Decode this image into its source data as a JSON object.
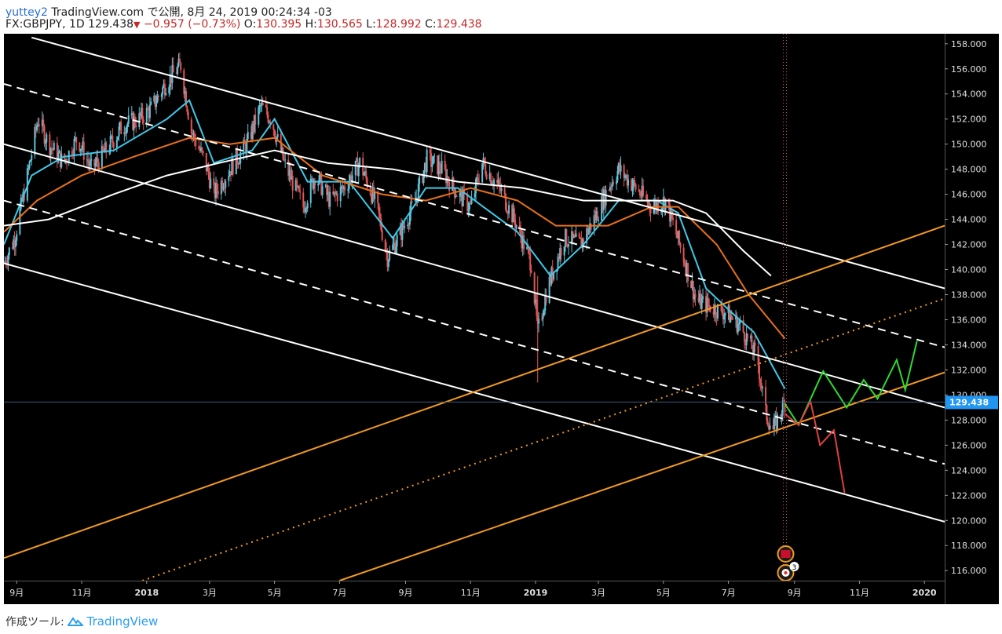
{
  "header": {
    "user": "yuttey2",
    "published": "TradingView.com で公開, 8月 24, 2019 00:24:34 -03",
    "symbol": "FX:GBPJPY, 1D",
    "price": "129.438",
    "change": "−0.957 (−0.73%)",
    "o_label": "O:",
    "o_value": "130.395",
    "h_label": "H:",
    "h_value": "130.565",
    "l_label": "L:",
    "l_value": "128.992",
    "c_label": "C:",
    "c_value": "129.438"
  },
  "footer": {
    "made_with": "作成ツール:",
    "brand": "TradingView"
  },
  "colors": {
    "background": "#000000",
    "candle_up": "#5fc3d9",
    "candle_down": "#e05555",
    "ma_fast": "#3ec9e8",
    "ma_mid": "#e8701a",
    "ma_slow": "#ffffff",
    "channel_white": "#ffffff",
    "channel_orange": "#f29a1e",
    "scenario_up": "#2ddc2d",
    "scenario_down": "#e04040",
    "price_tag": "#2196f3"
  },
  "chart_data": {
    "type": "line",
    "symbol": "FX:GBPJPY",
    "timeframe": "1D",
    "x_range": [
      "2017-08-20",
      "2020-01-20"
    ],
    "ylim": [
      115.2,
      158.8
    ],
    "y_ticks": [
      "158.000",
      "156.000",
      "154.000",
      "152.000",
      "150.000",
      "148.000",
      "146.000",
      "144.000",
      "142.000",
      "140.000",
      "138.000",
      "136.000",
      "134.000",
      "132.000",
      "130.000",
      "128.000",
      "126.000",
      "124.000",
      "122.000",
      "120.000",
      "118.000",
      "116.000"
    ],
    "x_ticks": [
      {
        "label": "9月",
        "date": "2017-09-01"
      },
      {
        "label": "11月",
        "date": "2017-11-01"
      },
      {
        "label": "2018",
        "date": "2018-01-01"
      },
      {
        "label": "3月",
        "date": "2018-03-01"
      },
      {
        "label": "5月",
        "date": "2018-05-01"
      },
      {
        "label": "7月",
        "date": "2018-07-01"
      },
      {
        "label": "9月",
        "date": "2018-09-01"
      },
      {
        "label": "11月",
        "date": "2018-11-01"
      },
      {
        "label": "2019",
        "date": "2019-01-01"
      },
      {
        "label": "3月",
        "date": "2019-03-01"
      },
      {
        "label": "5月",
        "date": "2019-05-01"
      },
      {
        "label": "7月",
        "date": "2019-07-01"
      },
      {
        "label": "9月",
        "date": "2019-09-01"
      },
      {
        "label": "11月",
        "date": "2019-11-01"
      },
      {
        "label": "2020",
        "date": "2020-01-01"
      }
    ],
    "last_price": "129.438",
    "last_date": "2019-08-23",
    "price_path": [
      [
        "2017-08-20",
        140.5
      ],
      [
        "2017-08-30",
        142.5
      ],
      [
        "2017-09-10",
        147.0
      ],
      [
        "2017-09-21",
        152.0
      ],
      [
        "2017-10-01",
        150.0
      ],
      [
        "2017-10-15",
        148.5
      ],
      [
        "2017-10-28",
        150.5
      ],
      [
        "2017-11-10",
        148.0
      ],
      [
        "2017-11-24",
        149.5
      ],
      [
        "2017-12-10",
        151.5
      ],
      [
        "2017-12-25",
        152.0
      ],
      [
        "2018-01-05",
        152.8
      ],
      [
        "2018-01-20",
        155.0
      ],
      [
        "2018-02-02",
        156.3
      ],
      [
        "2018-02-12",
        151.0
      ],
      [
        "2018-02-25",
        148.5
      ],
      [
        "2018-03-05",
        146.0
      ],
      [
        "2018-03-20",
        148.0
      ],
      [
        "2018-04-05",
        150.0
      ],
      [
        "2018-04-18",
        153.0
      ],
      [
        "2018-04-28",
        152.0
      ],
      [
        "2018-05-10",
        148.5
      ],
      [
        "2018-05-28",
        145.0
      ],
      [
        "2018-06-08",
        147.5
      ],
      [
        "2018-06-22",
        145.5
      ],
      [
        "2018-07-05",
        146.5
      ],
      [
        "2018-07-20",
        148.5
      ],
      [
        "2018-08-05",
        145.0
      ],
      [
        "2018-08-15",
        141.0
      ],
      [
        "2018-08-28",
        143.0
      ],
      [
        "2018-09-10",
        145.5
      ],
      [
        "2018-09-21",
        148.8
      ],
      [
        "2018-10-05",
        148.0
      ],
      [
        "2018-10-20",
        146.0
      ],
      [
        "2018-11-01",
        145.0
      ],
      [
        "2018-11-12",
        148.5
      ],
      [
        "2018-11-28",
        146.5
      ],
      [
        "2018-12-12",
        144.0
      ],
      [
        "2018-12-28",
        140.5
      ],
      [
        "2019-01-03",
        135.0
      ],
      [
        "2019-01-12",
        138.5
      ],
      [
        "2019-01-28",
        142.5
      ],
      [
        "2019-02-12",
        142.0
      ],
      [
        "2019-02-28",
        144.5
      ],
      [
        "2019-03-10",
        146.5
      ],
      [
        "2019-03-20",
        148.0
      ],
      [
        "2019-04-05",
        146.5
      ],
      [
        "2019-04-20",
        145.0
      ],
      [
        "2019-05-03",
        145.5
      ],
      [
        "2019-05-18",
        141.5
      ],
      [
        "2019-06-01",
        137.5
      ],
      [
        "2019-06-15",
        137.0
      ],
      [
        "2019-06-30",
        136.5
      ],
      [
        "2019-07-12",
        135.5
      ],
      [
        "2019-07-28",
        133.0
      ],
      [
        "2019-08-05",
        128.5
      ],
      [
        "2019-08-12",
        127.2
      ],
      [
        "2019-08-23",
        129.438
      ]
    ],
    "overlays": [
      {
        "name": "EMA fast",
        "color": "#3ec9e8",
        "points": [
          [
            "2017-08-20",
            142.0
          ],
          [
            "2017-09-15",
            147.5
          ],
          [
            "2017-10-15",
            149.0
          ],
          [
            "2017-12-01",
            149.5
          ],
          [
            "2018-01-20",
            152.0
          ],
          [
            "2018-02-10",
            153.5
          ],
          [
            "2018-03-05",
            148.5
          ],
          [
            "2018-04-10",
            149.5
          ],
          [
            "2018-05-01",
            152.0
          ],
          [
            "2018-06-01",
            147.0
          ],
          [
            "2018-07-10",
            147.0
          ],
          [
            "2018-08-20",
            142.5
          ],
          [
            "2018-09-20",
            146.5
          ],
          [
            "2018-10-20",
            146.5
          ],
          [
            "2018-12-15",
            143.0
          ],
          [
            "2019-01-15",
            139.5
          ],
          [
            "2019-02-15",
            142.0
          ],
          [
            "2019-03-20",
            145.5
          ],
          [
            "2019-04-25",
            145.5
          ],
          [
            "2019-05-15",
            144.5
          ],
          [
            "2019-06-10",
            138.5
          ],
          [
            "2019-07-05",
            136.5
          ],
          [
            "2019-07-25",
            135.0
          ],
          [
            "2019-08-23",
            130.5
          ]
        ]
      },
      {
        "name": "EMA mid",
        "color": "#e8701a",
        "points": [
          [
            "2017-08-20",
            143.0
          ],
          [
            "2017-09-20",
            145.5
          ],
          [
            "2017-11-01",
            147.5
          ],
          [
            "2017-12-20",
            149.0
          ],
          [
            "2018-02-10",
            150.5
          ],
          [
            "2018-03-20",
            150.0
          ],
          [
            "2018-05-01",
            150.5
          ],
          [
            "2018-06-15",
            147.5
          ],
          [
            "2018-08-10",
            146.0
          ],
          [
            "2018-09-20",
            145.5
          ],
          [
            "2018-11-01",
            146.5
          ],
          [
            "2018-12-15",
            145.5
          ],
          [
            "2019-01-20",
            143.5
          ],
          [
            "2019-03-10",
            143.5
          ],
          [
            "2019-04-20",
            145.0
          ],
          [
            "2019-05-15",
            145.0
          ],
          [
            "2019-06-20",
            142.0
          ],
          [
            "2019-07-20",
            138.0
          ],
          [
            "2019-08-23",
            134.5
          ]
        ]
      },
      {
        "name": "SMA slow",
        "color": "#ffffff",
        "points": [
          [
            "2017-08-20",
            143.5
          ],
          [
            "2017-10-01",
            144.0
          ],
          [
            "2017-12-01",
            146.0
          ],
          [
            "2018-01-20",
            147.5
          ],
          [
            "2018-03-10",
            148.5
          ],
          [
            "2018-05-01",
            149.5
          ],
          [
            "2018-06-20",
            148.5
          ],
          [
            "2018-08-20",
            148.0
          ],
          [
            "2018-10-20",
            147.0
          ],
          [
            "2018-12-20",
            146.5
          ],
          [
            "2019-02-15",
            145.5
          ],
          [
            "2019-04-10",
            145.5
          ],
          [
            "2019-05-10",
            145.5
          ],
          [
            "2019-06-10",
            144.5
          ],
          [
            "2019-07-15",
            141.5
          ],
          [
            "2019-08-10",
            139.5
          ]
        ]
      }
    ],
    "drawings": [
      {
        "type": "line",
        "color": "#ffffff",
        "style": "solid",
        "from": [
          "2017-09-15",
          158.5
        ],
        "to": [
          "2020-01-20",
          138.5
        ]
      },
      {
        "type": "line",
        "color": "#ffffff",
        "style": "dashed",
        "from": [
          "2017-08-20",
          154.8
        ],
        "to": [
          "2020-01-20",
          133.8
        ]
      },
      {
        "type": "line",
        "color": "#ffffff",
        "style": "solid",
        "from": [
          "2017-08-20",
          150.0
        ],
        "to": [
          "2020-01-20",
          129.0
        ]
      },
      {
        "type": "line",
        "color": "#ffffff",
        "style": "dashed",
        "from": [
          "2017-08-20",
          145.5
        ],
        "to": [
          "2020-01-20",
          124.5
        ]
      },
      {
        "type": "line",
        "color": "#ffffff",
        "style": "solid",
        "from": [
          "2017-08-20",
          140.5
        ],
        "to": [
          "2020-01-20",
          119.9
        ]
      },
      {
        "type": "line",
        "color": "#f29a1e",
        "style": "solid",
        "from": [
          "2017-08-20",
          117.0
        ],
        "to": [
          "2020-01-20",
          143.5
        ]
      },
      {
        "type": "line",
        "color": "#f29a1e",
        "style": "dotted",
        "from": [
          "2017-12-28",
          115.2
        ],
        "to": [
          "2020-01-20",
          137.7
        ]
      },
      {
        "type": "line",
        "color": "#f29a1e",
        "style": "solid",
        "from": [
          "2018-07-01",
          115.2
        ],
        "to": [
          "2020-01-20",
          131.8
        ]
      },
      {
        "type": "polyline",
        "color": "#2ddc2d",
        "name": "bullish scenario",
        "points": [
          [
            "2019-08-23",
            129.3
          ],
          [
            "2019-09-05",
            127.6
          ],
          [
            "2019-09-28",
            131.9
          ],
          [
            "2019-10-20",
            129.0
          ],
          [
            "2019-11-05",
            131.2
          ],
          [
            "2019-11-18",
            129.7
          ],
          [
            "2019-12-06",
            132.8
          ],
          [
            "2019-12-14",
            130.4
          ],
          [
            "2019-12-25",
            134.3
          ]
        ]
      },
      {
        "type": "polyline",
        "color": "#e04040",
        "name": "bearish scenario",
        "points": [
          [
            "2019-08-23",
            128.5
          ],
          [
            "2019-09-05",
            127.6
          ],
          [
            "2019-09-16",
            129.5
          ],
          [
            "2019-09-25",
            126.0
          ],
          [
            "2019-10-08",
            127.2
          ],
          [
            "2019-10-18",
            122.2
          ]
        ]
      },
      {
        "type": "vline",
        "color": "#e05555",
        "style": "dotted",
        "at": "2019-08-23"
      }
    ]
  }
}
